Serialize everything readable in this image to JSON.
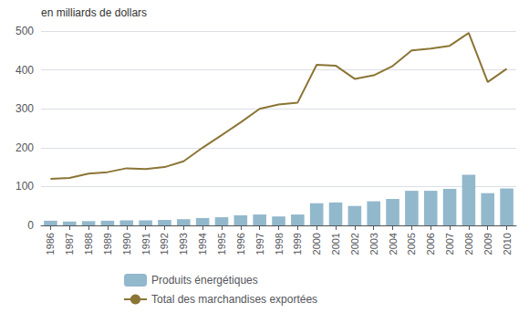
{
  "chart_data": {
    "type": "bar",
    "ylabel": "en milliards de dollars",
    "categories": [
      "1986",
      "1987",
      "1988",
      "1989",
      "1990",
      "1991",
      "1992",
      "1993",
      "1994",
      "1995",
      "1996",
      "1997",
      "1998",
      "1999",
      "2000",
      "2001",
      "2002",
      "2003",
      "2004",
      "2005",
      "2006",
      "2007",
      "2008",
      "2009",
      "2010"
    ],
    "series": [
      {
        "name": "Produits énergétiques",
        "type": "bar",
        "color": "#92b8cc",
        "values": [
          12,
          10,
          11,
          12,
          13,
          13,
          14,
          16,
          19,
          21,
          26,
          28,
          23,
          28,
          57,
          59,
          50,
          62,
          68,
          89,
          89,
          94,
          130,
          83,
          95
        ]
      },
      {
        "name": "Total des marchandises exportées",
        "type": "line",
        "color": "#8b7535",
        "values": [
          120,
          122,
          133,
          137,
          147,
          145,
          150,
          165,
          200,
          232,
          265,
          300,
          311,
          316,
          413,
          411,
          377,
          386,
          410,
          450,
          455,
          462,
          495,
          369,
          403
        ]
      }
    ],
    "ylim": [
      0,
      500
    ],
    "yticks": [
      0,
      100,
      200,
      300,
      400,
      500
    ],
    "grid": true,
    "legend": "bottom"
  }
}
